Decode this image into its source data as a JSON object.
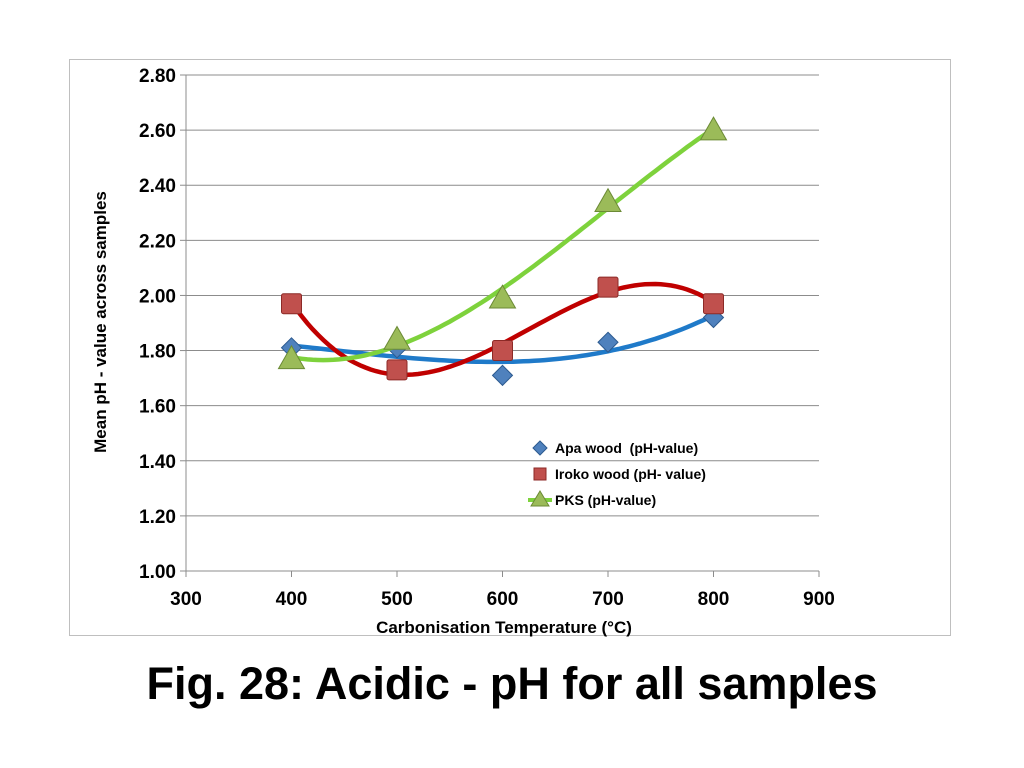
{
  "slide": {
    "title": "Fig. 28: Acidic - pH for all samples"
  },
  "chart_data": {
    "type": "scatter",
    "title": "",
    "xlabel": "Carbonisation Temperature (°C)",
    "ylabel": "Mean pH - value across samples",
    "xlim": [
      300,
      900
    ],
    "ylim": [
      1.0,
      2.8
    ],
    "xticks": [
      300,
      400,
      500,
      600,
      700,
      800,
      900
    ],
    "yticks": [
      "1.00",
      "1.20",
      "1.40",
      "1.60",
      "1.80",
      "2.00",
      "2.20",
      "2.40",
      "2.60",
      "2.80"
    ],
    "grid": "horizontal",
    "legend_position": "bottom-right inside plot",
    "trendline": "polynomial",
    "series": [
      {
        "name": "Apa wood  (pH-value)",
        "marker": "diamond",
        "marker_color": "#4f81bd",
        "line_color": "#1f7ac9",
        "x": [
          400,
          500,
          600,
          700,
          800
        ],
        "y": [
          1.81,
          1.81,
          1.71,
          1.83,
          1.92
        ]
      },
      {
        "name": "Iroko wood (pH- value)",
        "marker": "square",
        "marker_color": "#c0504d",
        "line_color": "#c00000",
        "x": [
          400,
          500,
          600,
          700,
          800
        ],
        "y": [
          1.97,
          1.73,
          1.8,
          2.03,
          1.97
        ]
      },
      {
        "name": "PKS (pH-value)",
        "marker": "triangle",
        "marker_color": "#9bbb59",
        "line_color": "#7ed23c",
        "x": [
          400,
          500,
          600,
          700,
          800
        ],
        "y": [
          1.77,
          1.84,
          1.99,
          2.34,
          2.6
        ]
      }
    ]
  }
}
